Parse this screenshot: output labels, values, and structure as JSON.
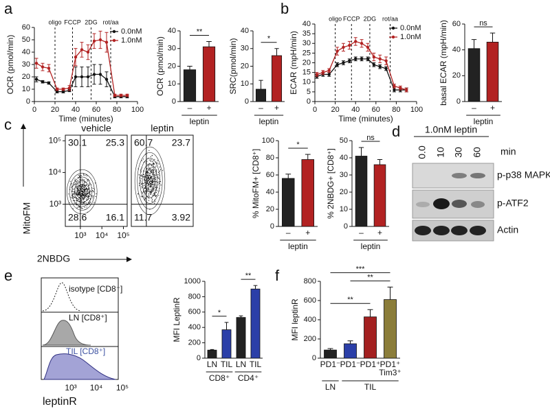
{
  "panel_labels": [
    "a",
    "b",
    "c",
    "d",
    "e",
    "f"
  ],
  "chart_data": [
    {
      "type": "line",
      "xlabel": "Time (minutes)",
      "ylabel": "OCR (pmol/min)",
      "x": [
        2,
        8,
        14,
        22,
        28,
        34,
        40,
        46,
        52,
        58,
        64,
        70,
        78,
        84,
        90
      ],
      "series": [
        {
          "name": "0.0nM",
          "color": "#111111",
          "values": [
            18,
            16,
            15,
            8,
            8,
            9,
            20,
            20,
            20,
            22,
            22,
            18,
            4,
            4,
            4
          ],
          "errors": [
            2,
            1,
            1,
            1,
            1,
            1,
            8,
            8,
            8,
            8,
            8,
            6,
            1,
            1,
            1
          ]
        },
        {
          "name": "1.0nM",
          "color": "#b22222",
          "values": [
            31,
            28,
            27,
            10,
            10,
            11,
            36,
            42,
            40,
            49,
            50,
            48,
            5,
            5,
            5
          ],
          "errors": [
            4,
            3,
            3,
            1,
            1,
            2,
            7,
            6,
            6,
            6,
            7,
            8,
            1,
            1,
            1
          ]
        }
      ],
      "injections": [
        {
          "label": "oligo",
          "x": 20
        },
        {
          "label": "FCCP",
          "x": 37
        },
        {
          "label": "2DG",
          "x": 55
        },
        {
          "label": "rot/aa",
          "x": 74
        }
      ],
      "xlim": [
        0,
        100
      ],
      "xticks": [
        0,
        20,
        40,
        60,
        80,
        100
      ],
      "ylim": [
        0,
        60
      ],
      "yticks": [
        0,
        10,
        20,
        30,
        40,
        50,
        60
      ],
      "legend": "upper right"
    },
    {
      "type": "bar",
      "ylabel": "OCR (pmol/min)",
      "categories": [
        "–",
        "+"
      ],
      "values": [
        18,
        31
      ],
      "errors": [
        2,
        3
      ],
      "colors": [
        "#222222",
        "#b22222"
      ],
      "ylim": [
        0,
        40
      ],
      "yticks": [
        0,
        10,
        20,
        30,
        40
      ],
      "groups": [
        {
          "label": "leptin",
          "span": [
            0,
            1
          ]
        }
      ],
      "significance": [
        {
          "label": "**",
          "between": [
            0,
            1
          ]
        }
      ]
    },
    {
      "type": "bar",
      "ylabel": "SRC(pmol/min)",
      "categories": [
        "–",
        "+"
      ],
      "values": [
        7,
        26
      ],
      "errors": [
        5,
        4
      ],
      "colors": [
        "#222222",
        "#b22222"
      ],
      "ylim": [
        0,
        40
      ],
      "yticks": [
        0,
        10,
        20,
        30,
        40
      ],
      "groups": [
        {
          "label": "leptin",
          "span": [
            0,
            1
          ]
        }
      ],
      "significance": [
        {
          "label": "*",
          "between": [
            0,
            1
          ]
        }
      ]
    },
    {
      "type": "line",
      "xlabel": "Time (minutes)",
      "ylabel": "ECAR (mpH/min)",
      "x": [
        2,
        8,
        14,
        22,
        28,
        34,
        40,
        46,
        52,
        58,
        64,
        70,
        78,
        84,
        90
      ],
      "series": [
        {
          "name": "0.0nM",
          "color": "#111111",
          "values": [
            13,
            14,
            14,
            19,
            20,
            21,
            22,
            22,
            22,
            19,
            18,
            17,
            6,
            6,
            6
          ],
          "errors": [
            1,
            1,
            1,
            1,
            1,
            1,
            1,
            1,
            1,
            1,
            1,
            1,
            1,
            1,
            1
          ]
        },
        {
          "name": "1.0nM",
          "color": "#b22222",
          "values": [
            14,
            15,
            16,
            26,
            28,
            29,
            31,
            30,
            28,
            23,
            22,
            21,
            8,
            7,
            6
          ],
          "errors": [
            1,
            1,
            1,
            2,
            2,
            2,
            2,
            2,
            2,
            2,
            2,
            2,
            1,
            1,
            1
          ]
        }
      ],
      "injections": [
        {
          "label": "oligo",
          "x": 20
        },
        {
          "label": "FCCP",
          "x": 36
        },
        {
          "label": "2DG",
          "x": 54
        },
        {
          "label": "rot/aa",
          "x": 74
        }
      ],
      "xlim": [
        0,
        100
      ],
      "xticks": [
        0,
        20,
        40,
        60,
        80,
        100
      ],
      "ylim": [
        0,
        40
      ],
      "yticks": [
        0,
        5,
        10,
        15,
        20,
        25,
        30,
        35,
        40
      ],
      "legend": "upper right"
    },
    {
      "type": "bar",
      "ylabel": "basal ECAR (mpH/min)",
      "categories": [
        "–",
        "+"
      ],
      "values": [
        41,
        46
      ],
      "errors": [
        7,
        7
      ],
      "colors": [
        "#222222",
        "#b22222"
      ],
      "ylim": [
        0,
        60
      ],
      "yticks": [
        0,
        20,
        40,
        60
      ],
      "groups": [
        {
          "label": "leptin",
          "span": [
            0,
            1
          ]
        }
      ],
      "significance": [
        {
          "label": "ns",
          "between": [
            0,
            1
          ]
        }
      ]
    },
    {
      "type": "bar",
      "ylabel": "% MitoFM+ [CD8⁺]",
      "categories": [
        "–",
        "+"
      ],
      "values": [
        56,
        78
      ],
      "errors": [
        5,
        6
      ],
      "colors": [
        "#222222",
        "#b22222"
      ],
      "ylim": [
        0,
        100
      ],
      "yticks": [
        0,
        20,
        40,
        60,
        80,
        100
      ],
      "groups": [
        {
          "label": "leptin",
          "span": [
            0,
            1
          ]
        }
      ],
      "significance": [
        {
          "label": "*",
          "between": [
            0,
            1
          ]
        }
      ]
    },
    {
      "type": "bar",
      "ylabel": "% 2NBDG+ [CD8⁺]",
      "categories": [
        "–",
        "+"
      ],
      "values": [
        41,
        36
      ],
      "errors": [
        5,
        3
      ],
      "colors": [
        "#222222",
        "#b22222"
      ],
      "ylim": [
        0,
        50
      ],
      "yticks": [
        0,
        10,
        20,
        30,
        40,
        50
      ],
      "groups": [
        {
          "label": "leptin",
          "span": [
            0,
            1
          ]
        }
      ],
      "significance": [
        {
          "label": "ns",
          "between": [
            0,
            1
          ]
        }
      ]
    },
    {
      "type": "bar",
      "ylabel": "MFI LeptinR",
      "categories": [
        "LN",
        "TIL",
        "LN",
        "TIL"
      ],
      "values": [
        105,
        370,
        530,
        900
      ],
      "errors": [
        8,
        95,
        20,
        45
      ],
      "colors": [
        "#222222",
        "#2b3fa8",
        "#222222",
        "#2b3fa8"
      ],
      "ylim": [
        0,
        1000
      ],
      "yticks": [
        0,
        200,
        400,
        600,
        800,
        1000
      ],
      "groups": [
        {
          "label": "CD8⁺",
          "span": [
            0,
            1
          ]
        },
        {
          "label": "CD4⁺",
          "span": [
            2,
            3
          ]
        }
      ],
      "significance": [
        {
          "label": "*",
          "between": [
            0,
            1
          ]
        },
        {
          "label": "**",
          "between": [
            2,
            3
          ]
        }
      ]
    },
    {
      "type": "bar",
      "ylabel": "MFI leptinR",
      "categories": [
        "PD1⁻",
        "PD1⁻",
        "PD1⁺",
        [
          "PD1⁺",
          "Tim3⁺"
        ]
      ],
      "values": [
        85,
        150,
        430,
        610
      ],
      "errors": [
        15,
        30,
        75,
        130
      ],
      "colors": [
        "#222222",
        "#2b3fa8",
        "#a32020",
        "#8b7d3a"
      ],
      "ylim": [
        0,
        800
      ],
      "yticks": [
        0,
        200,
        400,
        600,
        800
      ],
      "groups": [
        {
          "label": "LN",
          "span": [
            0,
            0
          ]
        },
        {
          "label": "TIL",
          "span": [
            1,
            3
          ]
        }
      ],
      "significance": [
        {
          "label": "**",
          "between": [
            0,
            2
          ]
        },
        {
          "label": "**",
          "between": [
            1,
            3
          ]
        },
        {
          "label": "***",
          "between": [
            0,
            3
          ]
        }
      ]
    }
  ],
  "flow": {
    "ylabel": "MitoFM",
    "xlabel": "2NBDG",
    "lim": [
      200,
      150000
    ],
    "ticks": [
      {
        "value": 1000,
        "label": "10³"
      },
      {
        "value": 10000,
        "label": "10⁴"
      },
      {
        "value": 100000,
        "label": "10⁵"
      }
    ],
    "plots": [
      {
        "title": "vehicle",
        "quadrants": [
          30.1,
          25.3,
          28.6,
          16.1
        ]
      },
      {
        "title": "leptin",
        "quadrants": [
          60.7,
          23.7,
          11.7,
          3.92
        ]
      }
    ]
  },
  "blot": {
    "title": "1.0nM leptin",
    "lanes": [
      "0.0",
      "10",
      "30",
      "60"
    ],
    "unit": "min",
    "rows": [
      "p-p38 MAPK",
      "p-ATF2",
      "Actin"
    ]
  },
  "histogram": {
    "labels": [
      "isotype [CD8⁺]",
      "LN [CD8⁺]",
      "TIL [CD8⁺]"
    ],
    "xticks": [
      "10³",
      "10⁴",
      "10⁵"
    ],
    "xlabel": "leptinR"
  }
}
